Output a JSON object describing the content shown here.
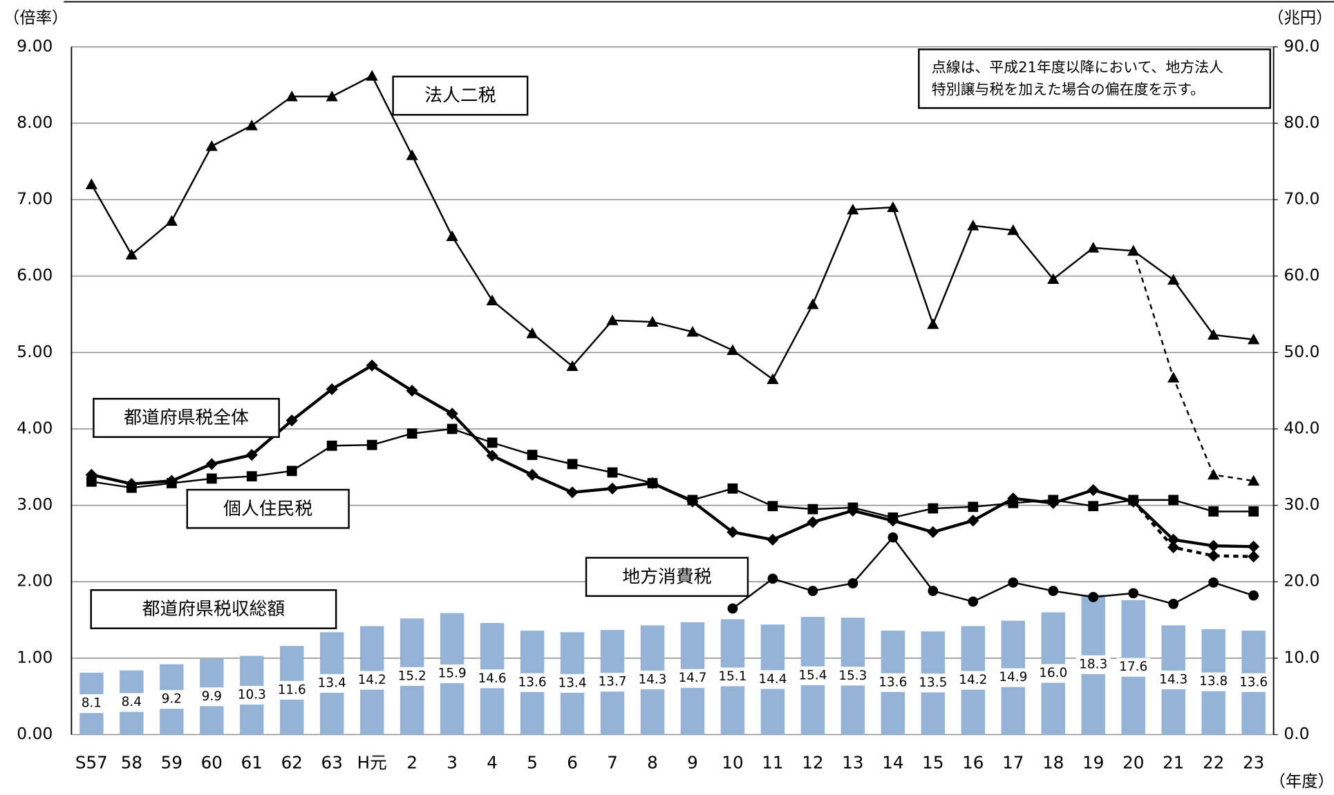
{
  "chart_data": {
    "type": "bar_line",
    "y_title": "（倍率）",
    "y2_title": "（兆円）",
    "x_title": "（年度）",
    "note": [
      "点線は、平成21年度以降において、地方法人",
      "特別譲与税を加えた場合の偏在度を示す。"
    ],
    "categories": [
      "S57",
      "58",
      "59",
      "60",
      "61",
      "62",
      "63",
      "H元",
      "2",
      "3",
      "4",
      "5",
      "6",
      "7",
      "8",
      "9",
      "10",
      "11",
      "12",
      "13",
      "14",
      "15",
      "16",
      "17",
      "18",
      "19",
      "20",
      "21",
      "22",
      "23"
    ],
    "ylim": [
      0,
      9
    ],
    "yticks": [
      {
        "value": 0,
        "label": "0.00"
      },
      {
        "value": 1,
        "label": "1.00"
      },
      {
        "value": 2,
        "label": "2.00"
      },
      {
        "value": 3,
        "label": "3.00"
      },
      {
        "value": 4,
        "label": "4.00"
      },
      {
        "value": 5,
        "label": "5.00"
      },
      {
        "value": 6,
        "label": "6.00"
      },
      {
        "value": 7,
        "label": "7.00"
      },
      {
        "value": 8,
        "label": "8.00"
      },
      {
        "value": 9,
        "label": "9.00"
      }
    ],
    "y2lim": [
      0,
      90
    ],
    "y2ticks": [
      {
        "value": 0,
        "label": "0.0"
      },
      {
        "value": 10,
        "label": "10.0"
      },
      {
        "value": 20,
        "label": "20.0"
      },
      {
        "value": 30,
        "label": "30.0"
      },
      {
        "value": 40,
        "label": "40.0"
      },
      {
        "value": 50,
        "label": "50.0"
      },
      {
        "value": 60,
        "label": "60.0"
      },
      {
        "value": 70,
        "label": "70.0"
      },
      {
        "value": 80,
        "label": "80.0"
      },
      {
        "value": 90,
        "label": "90.0"
      }
    ],
    "grid": true,
    "series": [
      {
        "name": "法人二税",
        "type": "line",
        "marker": "triangle",
        "color": "#000000",
        "width": 2,
        "values": [
          7.2,
          6.28,
          6.72,
          7.7,
          7.97,
          8.35,
          8.35,
          8.62,
          7.58,
          6.52,
          5.68,
          5.25,
          4.82,
          5.42,
          5.4,
          5.27,
          5.03,
          4.65,
          5.63,
          6.87,
          6.9,
          5.37,
          6.66,
          6.6,
          5.96,
          6.37,
          6.33,
          5.95,
          5.23,
          5.17
        ],
        "dashed_values": [
          null,
          null,
          null,
          null,
          null,
          null,
          null,
          null,
          null,
          null,
          null,
          null,
          null,
          null,
          null,
          null,
          null,
          null,
          null,
          null,
          null,
          null,
          null,
          null,
          null,
          null,
          6.33,
          4.67,
          3.4,
          3.32
        ]
      },
      {
        "name": "都道府県税全体",
        "type": "line",
        "marker": "diamond",
        "color": "#000000",
        "width": 3.5,
        "values": [
          3.4,
          3.28,
          3.32,
          3.54,
          3.66,
          4.11,
          4.52,
          4.83,
          4.5,
          4.2,
          3.65,
          3.4,
          3.17,
          3.22,
          3.29,
          3.05,
          2.65,
          2.55,
          2.78,
          2.93,
          2.8,
          2.65,
          2.8,
          3.09,
          3.03,
          3.2,
          3.05,
          2.55,
          2.47,
          2.46
        ],
        "dashed_values": [
          null,
          null,
          null,
          null,
          null,
          null,
          null,
          null,
          null,
          null,
          null,
          null,
          null,
          null,
          null,
          null,
          null,
          null,
          null,
          null,
          null,
          null,
          null,
          null,
          null,
          null,
          3.05,
          2.45,
          2.34,
          2.33
        ]
      },
      {
        "name": "個人住民税",
        "type": "line",
        "marker": "square",
        "color": "#000000",
        "width": 2,
        "values": [
          3.31,
          3.23,
          3.29,
          3.35,
          3.38,
          3.45,
          3.78,
          3.79,
          3.94,
          4.0,
          3.82,
          3.66,
          3.54,
          3.43,
          3.29,
          3.07,
          3.22,
          2.99,
          2.95,
          2.97,
          2.84,
          2.96,
          2.98,
          3.03,
          3.07,
          2.99,
          3.07,
          3.07,
          2.92,
          2.92
        ]
      },
      {
        "name": "地方消費税",
        "type": "line",
        "marker": "circle",
        "color": "#000000",
        "width": 2,
        "values": [
          null,
          null,
          null,
          null,
          null,
          null,
          null,
          null,
          null,
          null,
          null,
          null,
          null,
          null,
          null,
          null,
          1.65,
          2.04,
          1.88,
          1.98,
          2.58,
          1.88,
          1.74,
          1.99,
          1.88,
          1.8,
          1.85,
          1.71,
          1.99,
          1.82
        ]
      },
      {
        "name": "都道府県税収総額",
        "type": "bar",
        "axis": "y2",
        "color": "#95b3d7",
        "values": [
          8.1,
          8.4,
          9.2,
          9.9,
          10.3,
          11.6,
          13.4,
          14.2,
          15.2,
          15.9,
          14.6,
          13.6,
          13.4,
          13.7,
          14.3,
          14.7,
          15.1,
          14.4,
          15.4,
          15.3,
          13.6,
          13.5,
          14.2,
          14.9,
          16.0,
          18.3,
          17.6,
          14.3,
          13.8,
          13.6
        ],
        "value_labels": [
          "8.1",
          "8.4",
          "9.2",
          "9.9",
          "10.3",
          "11.6",
          "13.4",
          "14.2",
          "15.2",
          "15.9",
          "14.6",
          "13.6",
          "13.4",
          "13.7",
          "14.3",
          "14.7",
          "15.1",
          "14.4",
          "15.4",
          "15.3",
          "13.6",
          "13.5",
          "14.2",
          "14.9",
          "16.0",
          "18.3",
          "17.6",
          "14.3",
          "13.8",
          "13.6"
        ]
      }
    ]
  }
}
